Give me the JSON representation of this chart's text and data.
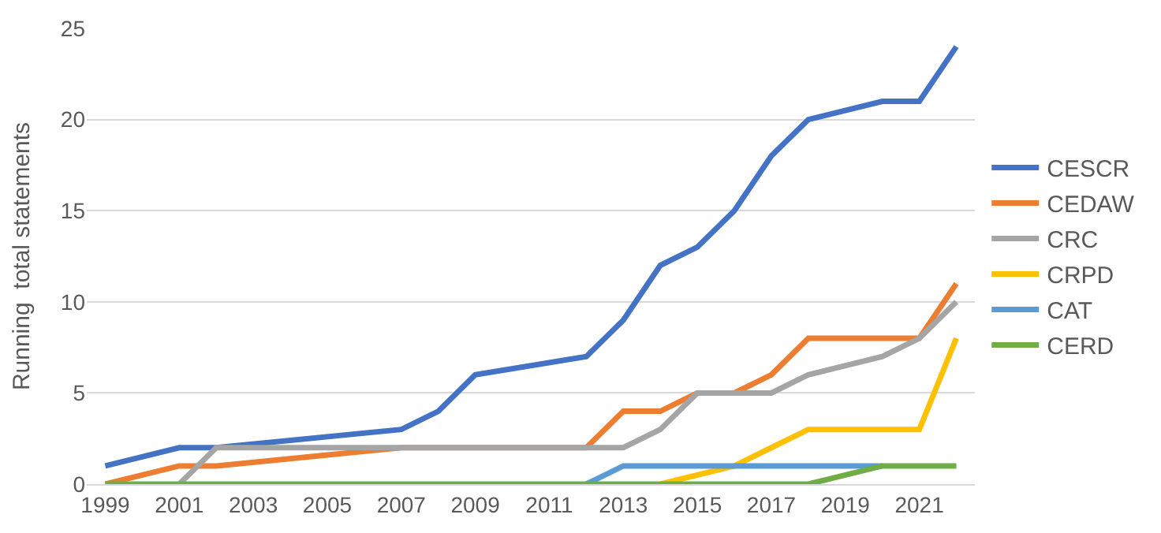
{
  "chart_data": {
    "type": "line",
    "ylabel": "Running  total statements",
    "xlim": [
      1998.5,
      2022.5
    ],
    "ylim": [
      0,
      25
    ],
    "xticks": [
      1999,
      2001,
      2003,
      2005,
      2007,
      2009,
      2011,
      2013,
      2015,
      2017,
      2019,
      2021
    ],
    "yticks": [
      0,
      5,
      10,
      15,
      20,
      25
    ],
    "grid": "y",
    "legend": "right",
    "marker": "none",
    "line_style": "solid",
    "series": [
      {
        "name": "CESCR",
        "color": "#4472c4",
        "x": [
          1999,
          2001,
          2002,
          2007,
          2008,
          2009,
          2012,
          2013,
          2014,
          2015,
          2016,
          2017,
          2018,
          2020,
          2021,
          2022
        ],
        "values": [
          1,
          2,
          2,
          3,
          4,
          6,
          7,
          9,
          12,
          13,
          15,
          18,
          20,
          21,
          21,
          24
        ]
      },
      {
        "name": "CEDAW",
        "color": "#ed7d31",
        "x": [
          1999,
          2001,
          2002,
          2007,
          2012,
          2013,
          2014,
          2015,
          2016,
          2017,
          2018,
          2021,
          2022
        ],
        "values": [
          0,
          1,
          1,
          2,
          2,
          4,
          4,
          5,
          5,
          6,
          8,
          8,
          11
        ]
      },
      {
        "name": "CRC",
        "color": "#a5a5a5",
        "x": [
          2001,
          2002,
          2013,
          2014,
          2015,
          2017,
          2018,
          2020,
          2021,
          2022
        ],
        "values": [
          0,
          2,
          2,
          3,
          5,
          5,
          6,
          7,
          8,
          10
        ]
      },
      {
        "name": "CRPD",
        "color": "#ffc000",
        "x": [
          2014,
          2016,
          2017,
          2018,
          2021,
          2022
        ],
        "values": [
          0,
          1,
          2,
          3,
          3,
          8
        ]
      },
      {
        "name": "CAT",
        "color": "#5b9bd5",
        "x": [
          2012,
          2013,
          2020
        ],
        "values": [
          0,
          1,
          1
        ]
      },
      {
        "name": "CERD",
        "color": "#70ad47",
        "x": [
          1999,
          2018,
          2020,
          2022
        ],
        "values": [
          0,
          0,
          1,
          1
        ]
      }
    ]
  }
}
